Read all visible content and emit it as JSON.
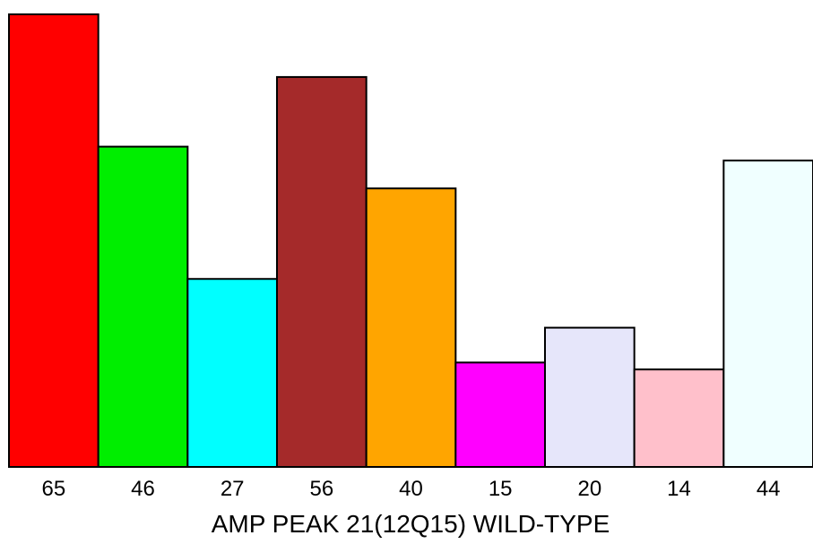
{
  "chart_data": {
    "type": "bar",
    "categories": [
      "65",
      "46",
      "27",
      "56",
      "40",
      "15",
      "20",
      "14",
      "44"
    ],
    "values": [
      65,
      46,
      27,
      56,
      40,
      15,
      20,
      14,
      44
    ],
    "colors": [
      "#ff0000",
      "#00ee00",
      "#00ffff",
      "#a52a2a",
      "#ffa500",
      "#ff00ff",
      "#e6e6fa",
      "#ffc0cb",
      "#f0ffff"
    ],
    "title": "",
    "xlabel": "AMP PEAK 21(12Q15) WILD-TYPE",
    "ylabel": "",
    "ylim": [
      0,
      65
    ],
    "grid": false,
    "legend": "none"
  }
}
